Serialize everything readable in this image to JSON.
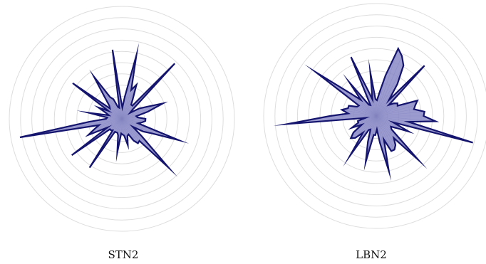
{
  "colors": {
    "fill": "#8a8ac8",
    "stroke": "#14146e",
    "grid": "#dddddd",
    "background": "#ffffff"
  },
  "chart_data": [
    {
      "type": "radar",
      "label": "STN2",
      "rmax": 10,
      "rings": [
        1,
        2,
        3,
        4,
        5,
        6,
        7,
        8,
        9,
        10
      ],
      "grid": true,
      "values": [
        2.1,
        1.4,
        1.3,
        2.4,
        3.9,
        2.5,
        1.8,
        0.9,
        1.3,
        6.8,
        1.5,
        1.5,
        2.1,
        3.3,
        2.7,
        5.8,
        2.0,
        1.0,
        1.6,
        6.2,
        1.0,
        1.1,
        1.9,
        2.2,
        4.5,
        2.4,
        1.6,
        1.4,
        5.4,
        1.4,
        2.3,
        1.5,
        1.2,
        3.0,
        1.3,
        1.4,
        2.9,
        9.2,
        2.1,
        2.6,
        3.3,
        1.5,
        5.5,
        1.4,
        1.4,
        1.3,
        5.2,
        1.3,
        1.3,
        1.3,
        1.5,
        3.0,
        1.3,
        1.4,
        1.5,
        2.4,
        1.6,
        1.5,
        2.2,
        2.6,
        2.5,
        6.0,
        2.3,
        1.2,
        2.2,
        3.0,
        5.4,
        1.5,
        1.8,
        2.1
      ]
    },
    {
      "type": "radar",
      "label": "LBN2",
      "rmax": 10,
      "rings": [
        1,
        2,
        3,
        4,
        5,
        6,
        7,
        8,
        9,
        10
      ],
      "grid": true,
      "values": [
        4.2,
        4.3,
        3.4,
        3.6,
        3.9,
        2.1,
        2.2,
        1.9,
        1.5,
        6.2,
        1.8,
        3.4,
        5.1,
        5.8,
        6.3,
        3.7,
        2.1,
        1.4,
        1.5,
        3.9,
        1.5,
        2.4,
        5.7,
        1.1,
        1.2,
        3.8,
        2.0,
        3.1,
        6.6,
        1.8,
        1.9,
        2.6,
        2.6,
        3.1,
        2.5,
        4.1,
        7.9,
        1.0,
        1.7,
        1.7,
        2.4,
        1.5,
        2.5,
        3.0,
        2.7,
        1.9,
        4.2,
        1.4,
        1.3,
        2.4,
        4.2,
        1.7,
        1.7,
        1.2,
        2.4,
        5.0,
        2.2,
        3.4,
        3.4,
        3.1,
        2.5,
        5.4,
        1.8,
        1.6,
        2.1,
        3.2,
        1.6,
        8.9,
        2.9,
        5.3
      ]
    }
  ]
}
